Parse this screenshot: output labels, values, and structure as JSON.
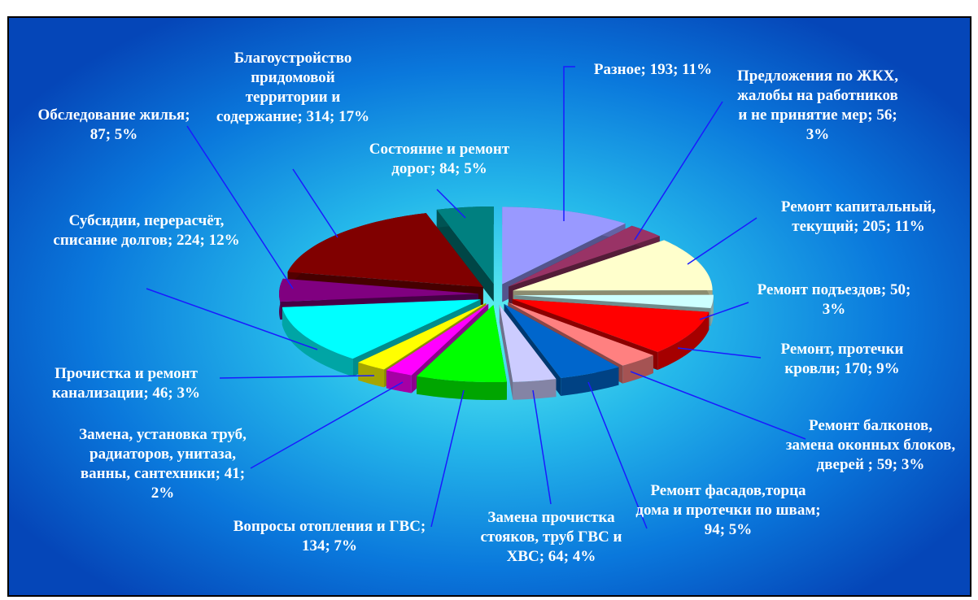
{
  "chart_data": {
    "type": "pie",
    "labels": [
      "Разное; 193; 11%",
      "Предложения по ЖКХ, жалобы на работников и не принятие мер; 56; 3%",
      "Ремонт капитальный, текущий; 205; 11%",
      "Ремонт подъездов; 50; 3%",
      "Ремонт, протечки кровли; 170; 9%",
      "Ремонт балконов, замена оконных блоков, дверей ; 59; 3%",
      "Ремонт фасадов,торца дома и протечки по швам; 94; 5%",
      "Замена прочистка стояков, труб ГВС и ХВС; 64; 4%",
      "Вопросы отопления и ГВС; 134; 7%",
      "Замена, установка труб, радиаторов, унитаза, ванны, сантехники; 41; 2%",
      "Прочистка и ремонт канализации; 46; 3%",
      "Субсидии, перерасчёт, списание долгов; 224; 12%",
      "Обследование жилья; 87; 5%",
      "Благоустройство придомовой территории и содержание; 314; 17%",
      "Состояние и ремонт дорог; 84; 5%"
    ],
    "values": [
      193,
      56,
      205,
      50,
      170,
      59,
      94,
      64,
      134,
      41,
      46,
      224,
      87,
      314,
      84
    ],
    "colors": [
      "#9999ff",
      "#993366",
      "#ffffcc",
      "#ccffff",
      "#ff0000",
      "#ff8080",
      "#0066cc",
      "#ccccff",
      "#00ff00",
      "#ff00ff",
      "#ffff00",
      "#00ffff",
      "#800080",
      "#800000",
      "#008080"
    ]
  }
}
